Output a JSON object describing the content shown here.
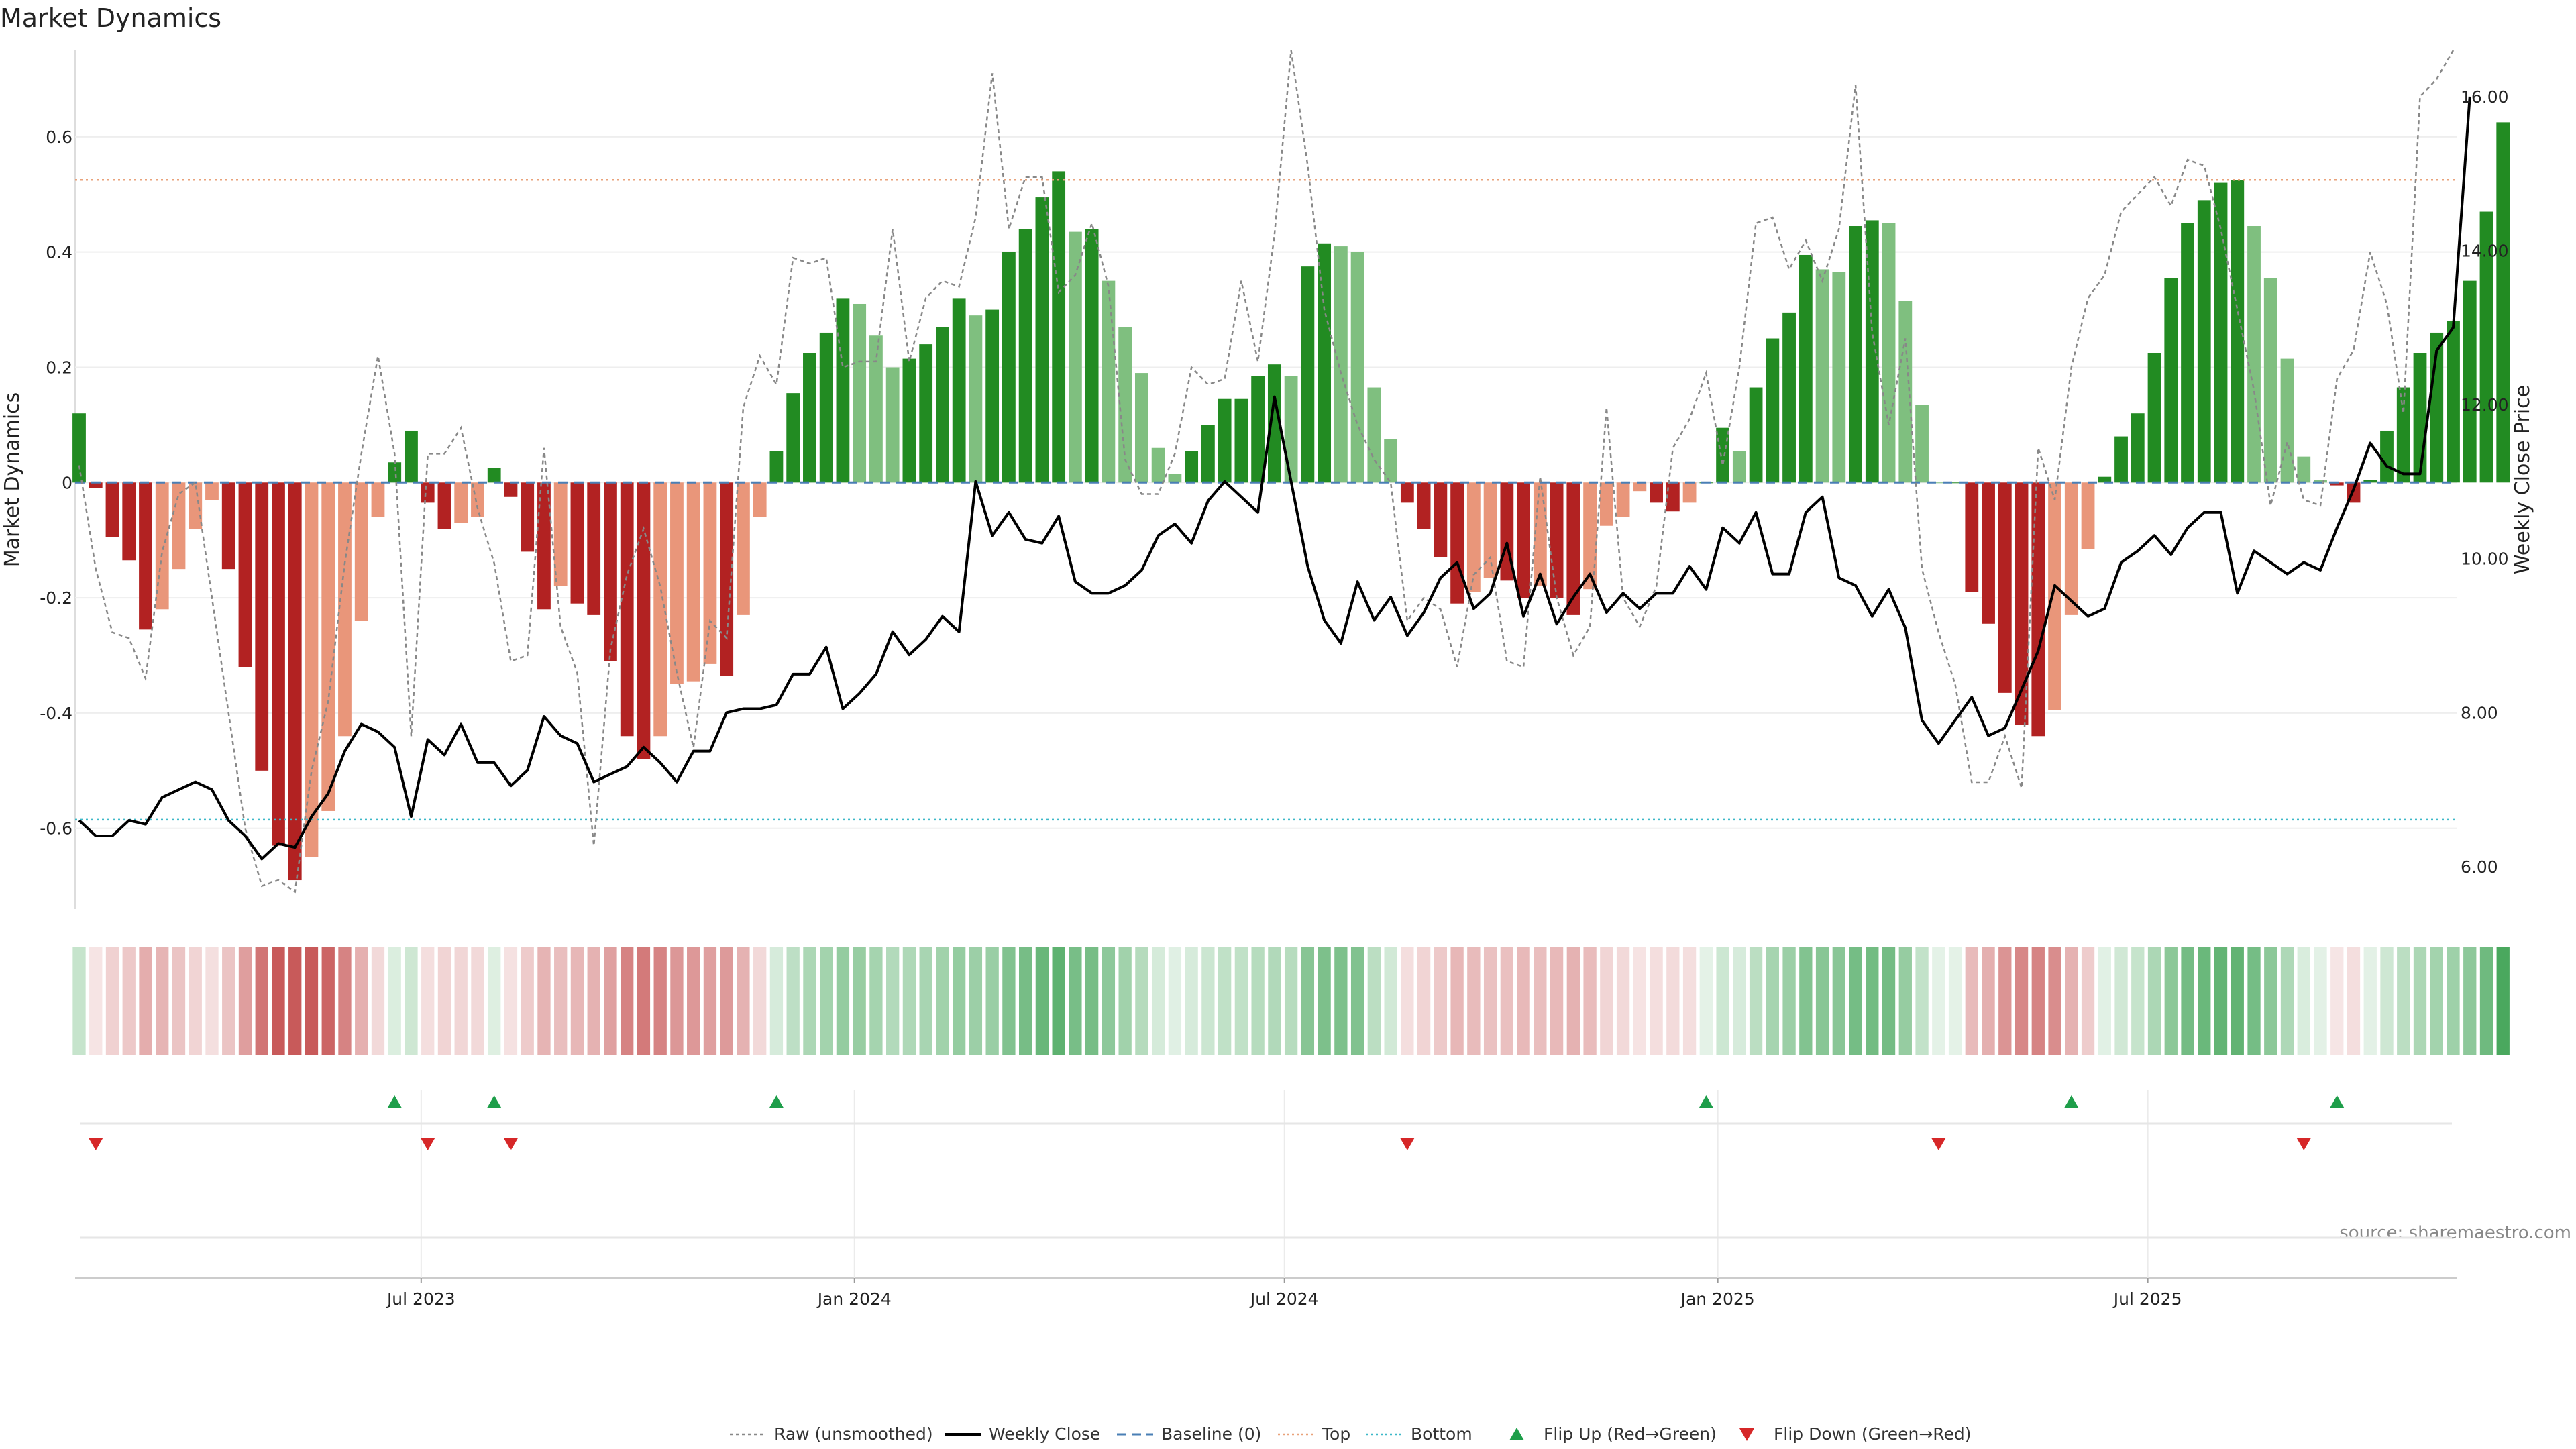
{
  "chart_data": {
    "type": "bar",
    "title": "Market Dynamics",
    "ylabel": "Market Dynamics",
    "y2label": "Weekly Close Price",
    "source": "source: sharemaestro.com",
    "ylim": [
      -0.74,
      0.75
    ],
    "y2lim": [
      5.45,
      16.6
    ],
    "y_ticks": [
      "0.6",
      "0.4",
      "0.2",
      "0",
      "-0.2",
      "-0.4",
      "-0.6"
    ],
    "y2_ticks": [
      "16.00",
      "14.00",
      "12.00",
      "10.00",
      "8.00",
      "6.00"
    ],
    "x_ticks": [
      {
        "label": "Jul 2023",
        "week": 20.6
      },
      {
        "label": "Jan 2024",
        "week": 46.7
      },
      {
        "label": "Jul 2024",
        "week": 72.6
      },
      {
        "label": "Jan 2025",
        "week": 98.7
      },
      {
        "label": "Jul 2025",
        "week": 124.6
      }
    ],
    "levels": {
      "top": 0.525,
      "bottom": -0.585,
      "baseline": 0
    },
    "weeks": 144,
    "bars": [
      0.12,
      -0.01,
      -0.095,
      -0.135,
      -0.255,
      -0.22,
      -0.15,
      -0.08,
      -0.03,
      -0.15,
      -0.32,
      -0.5,
      -0.63,
      -0.69,
      -0.65,
      -0.57,
      -0.44,
      -0.24,
      -0.06,
      0.035,
      0.09,
      -0.035,
      -0.08,
      -0.07,
      -0.06,
      0.025,
      -0.025,
      -0.12,
      -0.22,
      -0.18,
      -0.21,
      -0.23,
      -0.31,
      -0.44,
      -0.48,
      -0.44,
      -0.35,
      -0.345,
      -0.315,
      -0.335,
      -0.23,
      -0.06,
      0.055,
      0.155,
      0.225,
      0.26,
      0.32,
      0.31,
      0.255,
      0.2,
      0.215,
      0.24,
      0.27,
      0.32,
      0.29,
      0.3,
      0.4,
      0.44,
      0.495,
      0.54,
      0.435,
      0.44,
      0.35,
      0.27,
      0.19,
      0.06,
      0.015,
      0.055,
      0.1,
      0.145,
      0.145,
      0.185,
      0.205,
      0.185,
      0.375,
      0.415,
      0.41,
      0.4,
      0.165,
      0.075,
      -0.035,
      -0.08,
      -0.13,
      -0.21,
      -0.19,
      -0.165,
      -0.17,
      -0.2,
      -0.18,
      -0.2,
      -0.23,
      -0.185,
      -0.075,
      -0.06,
      -0.015,
      -0.035,
      -0.05,
      -0.035,
      0.0,
      0.095,
      0.055,
      0.165,
      0.25,
      0.295,
      0.395,
      0.37,
      0.365,
      0.445,
      0.455,
      0.45,
      0.315,
      0.135,
      0.0,
      -0.0,
      -0.19,
      -0.245,
      -0.365,
      -0.42,
      -0.44,
      -0.395,
      -0.23,
      -0.115,
      0.01,
      0.08,
      0.12,
      0.225,
      0.355,
      0.45,
      0.49,
      0.52,
      0.525,
      0.445,
      0.355,
      0.215,
      0.045,
      0.005,
      -0.005,
      -0.035,
      0.005,
      0.09,
      0.165,
      0.225,
      0.26,
      0.28,
      0.35,
      0.47,
      0.625
    ],
    "raw": [
      0.03,
      -0.15,
      -0.26,
      -0.27,
      -0.34,
      -0.12,
      -0.02,
      0.0,
      -0.2,
      -0.4,
      -0.6,
      -0.7,
      -0.69,
      -0.71,
      -0.5,
      -0.38,
      -0.14,
      0.05,
      0.22,
      0.05,
      -0.44,
      0.05,
      0.05,
      0.095,
      -0.045,
      -0.14,
      -0.31,
      -0.3,
      0.06,
      -0.25,
      -0.33,
      -0.63,
      -0.29,
      -0.16,
      -0.08,
      -0.18,
      -0.33,
      -0.46,
      -0.24,
      -0.27,
      0.13,
      0.22,
      0.17,
      0.39,
      0.38,
      0.39,
      0.2,
      0.21,
      0.21,
      0.44,
      0.21,
      0.32,
      0.35,
      0.34,
      0.46,
      0.71,
      0.44,
      0.53,
      0.53,
      0.33,
      0.36,
      0.45,
      0.34,
      0.04,
      -0.02,
      -0.02,
      0.05,
      0.2,
      0.17,
      0.18,
      0.35,
      0.21,
      0.43,
      0.75,
      0.55,
      0.3,
      0.19,
      0.1,
      0.04,
      -0.0,
      -0.24,
      -0.2,
      -0.22,
      -0.32,
      -0.16,
      -0.13,
      -0.31,
      -0.32,
      0.01,
      -0.2,
      -0.3,
      -0.25,
      0.13,
      -0.2,
      -0.25,
      -0.18,
      0.06,
      0.11,
      0.19,
      0.03,
      0.2,
      0.45,
      0.46,
      0.37,
      0.42,
      0.35,
      0.44,
      0.69,
      0.26,
      0.1,
      0.25,
      -0.15,
      -0.26,
      -0.35,
      -0.52,
      -0.52,
      -0.44,
      -0.53,
      0.06,
      -0.03,
      0.2,
      0.32,
      0.36,
      0.47,
      0.5,
      0.53,
      0.48,
      0.56,
      0.55,
      0.44,
      0.3,
      0.16,
      -0.04,
      0.07,
      -0.03,
      -0.04,
      0.18,
      0.23,
      0.4,
      0.31,
      0.12,
      0.67,
      0.7,
      0.75
    ],
    "close": [
      6.6,
      6.4,
      6.4,
      6.6,
      6.55,
      6.9,
      7.0,
      7.1,
      7.0,
      6.6,
      6.4,
      6.1,
      6.3,
      6.25,
      6.65,
      6.95,
      7.5,
      7.85,
      7.75,
      7.55,
      6.65,
      7.65,
      7.45,
      7.85,
      7.35,
      7.35,
      7.05,
      7.25,
      7.95,
      7.7,
      7.6,
      7.1,
      7.2,
      7.3,
      7.55,
      7.35,
      7.1,
      7.5,
      7.5,
      8.0,
      8.05,
      8.05,
      8.1,
      8.5,
      8.5,
      8.85,
      8.05,
      8.25,
      8.5,
      9.05,
      8.75,
      8.95,
      9.25,
      9.05,
      11.0,
      10.3,
      10.6,
      10.25,
      10.2,
      10.55,
      9.7,
      9.55,
      9.55,
      9.65,
      9.85,
      10.3,
      10.45,
      10.2,
      10.75,
      11.0,
      10.8,
      10.6,
      12.1,
      11.0,
      9.9,
      9.2,
      8.9,
      9.7,
      9.2,
      9.5,
      9.0,
      9.3,
      9.75,
      9.95,
      9.35,
      9.55,
      10.2,
      9.25,
      9.8,
      9.15,
      9.5,
      9.8,
      9.3,
      9.55,
      9.35,
      9.55,
      9.55,
      9.9,
      9.6,
      10.4,
      10.2,
      10.6,
      9.8,
      9.8,
      10.6,
      10.8,
      9.75,
      9.65,
      9.25,
      9.6,
      9.1,
      7.9,
      7.6,
      7.9,
      8.2,
      7.7,
      7.8,
      8.3,
      8.8,
      9.65,
      9.45,
      9.25,
      9.35,
      9.95,
      10.1,
      10.3,
      10.05,
      10.4,
      10.6,
      10.6,
      9.55,
      10.1,
      9.95,
      9.8,
      9.95,
      9.85,
      10.4,
      10.9,
      11.5,
      11.2,
      11.1,
      11.1,
      12.7,
      13.0,
      16.0
    ],
    "flips_up": [
      19,
      25,
      42,
      98,
      120,
      136
    ],
    "flips_down": [
      1,
      21,
      26,
      80,
      112,
      134
    ],
    "legend": [
      {
        "label": "Raw (unsmoothed)",
        "kind": "dash-gray"
      },
      {
        "label": "Weekly Close",
        "kind": "solid-black"
      },
      {
        "label": "Baseline (0)",
        "kind": "dash-blue"
      },
      {
        "label": "Top",
        "kind": "dot-orange"
      },
      {
        "label": "Bottom",
        "kind": "dot-cyan"
      },
      {
        "label": "Flip Up (Red→Green)",
        "kind": "tri-up"
      },
      {
        "label": "Flip Down (Green→Red)",
        "kind": "tri-down"
      }
    ],
    "colors": {
      "green_strong": "#228B22",
      "green_light": "#7FBF7F",
      "red_strong": "#B22222",
      "red_light": "#E9967A",
      "close_line": "#000000",
      "raw_line": "#888888",
      "baseline": "#4A7FB5",
      "top_line": "#E9A27A",
      "bottom_line": "#3CB8C8",
      "flip_up": "#1E9E4A",
      "flip_down": "#D62728"
    }
  }
}
